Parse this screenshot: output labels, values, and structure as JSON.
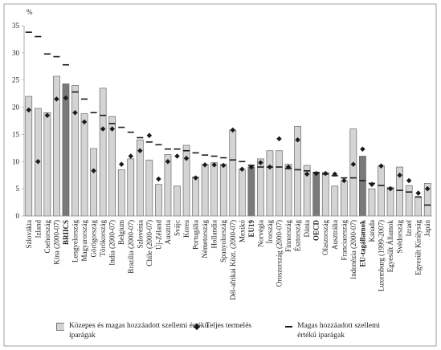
{
  "chart_data": {
    "type": "bar",
    "y_unit": "%",
    "categories": [
      "Szlovákia",
      "Izland",
      "Csehország",
      "Kína (2000-07)",
      "BRIICS",
      "Lengyelország",
      "Magyarország",
      "Görögország",
      "Törökország",
      "India (2000-07)",
      "Belgium",
      "Brazília (2000-07)",
      "Szlovénia",
      "Chile (2000-07)",
      "Új-Zéland",
      "Ausztria",
      "Svájc",
      "Korea",
      "Portugália",
      "Németország",
      "Hollandia",
      "Spanyolország",
      "Dél-afrikai Közt. (2000-07)",
      "Mexikó",
      "EU19",
      "Norvégia",
      "Írország",
      "Oroszország (2000-07)",
      "Finnország",
      "Észtország",
      "Dánia",
      "OECD",
      "Olaszország",
      "Ausztrália",
      "Franciaország",
      "Indonézia (2000-07)",
      "EU-tagállamok",
      "Kanada",
      "Luxemburg (1999-2007)",
      "Egyesült Államok",
      "Svédország",
      "Izrael",
      "Egyesült Királyság",
      "Japán"
    ],
    "highlight_indices": [
      4,
      24,
      31,
      36
    ],
    "highlight_color": "#7a7a7a",
    "series": [
      {
        "name": "Közepes és magas hozzáadott szellemi értékű iparágak",
        "mark": "bar",
        "color": "#d4d4d4",
        "values": [
          22,
          19.8,
          19,
          25.7,
          24.3,
          24,
          18.8,
          12.4,
          23.5,
          18.3,
          8.5,
          10.5,
          14,
          10.3,
          5.8,
          11.3,
          5.5,
          13,
          7.2,
          9.5,
          9.8,
          9.5,
          15.8,
          8.6,
          9,
          10.5,
          12,
          12,
          9.5,
          16.5,
          9.3,
          8,
          8,
          5.5,
          6.5,
          16,
          11,
          5,
          9.2,
          5.3,
          9,
          5.6,
          3.5,
          6
        ]
      },
      {
        "name": "Teljes termelés",
        "mark": "diamond",
        "color": "#1a1a1a",
        "values": [
          19.5,
          10,
          18.5,
          21.5,
          21.7,
          19,
          17.3,
          8.3,
          16,
          16,
          9.5,
          11,
          12,
          14.8,
          6.8,
          10,
          11,
          10.6,
          7,
          9.4,
          9.4,
          9.3,
          15.8,
          8.6,
          9,
          9.8,
          9,
          14.2,
          9,
          14,
          7.7,
          7.8,
          7.8,
          7.7,
          6.5,
          9.5,
          12.3,
          5.8,
          9.2,
          5,
          7.5,
          6.5,
          4.2,
          5
        ]
      },
      {
        "name": "Magas hozzáadott szellemi értékű iparágak",
        "mark": "dash",
        "color": "#1a1a1a",
        "values": [
          33.8,
          33,
          29.8,
          29.3,
          27.8,
          22.8,
          21.5,
          19,
          18.5,
          17,
          16.3,
          15.4,
          14.4,
          13.6,
          13.1,
          12.3,
          12.3,
          12,
          11.6,
          11.2,
          11,
          10.7,
          10.3,
          10,
          9.3,
          9,
          9,
          9,
          8.7,
          8.5,
          8.3,
          8,
          7.7,
          7.4,
          7,
          7,
          6.5,
          6,
          5.6,
          5,
          4.7,
          4.4,
          3.5,
          2
        ]
      }
    ],
    "ylim": [
      0,
      35
    ],
    "yticks": [
      0,
      5,
      10,
      15,
      20,
      25,
      30,
      35
    ],
    "grid": false
  }
}
